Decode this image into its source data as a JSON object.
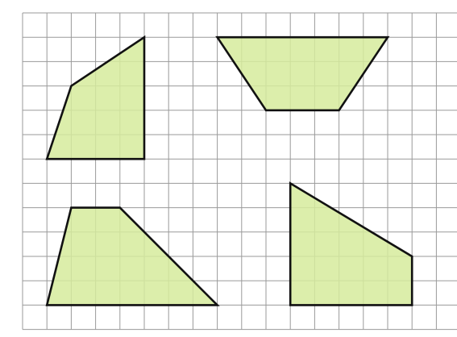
{
  "colors": {
    "background": "#ffffff",
    "grid_line": "#9a9a9a",
    "shape_fill": "#d6eb9c",
    "shape_stroke": "#111111"
  },
  "grid": {
    "columns": 18,
    "rows": 13
  },
  "shapes": [
    {
      "id": "quadrilateral-top-left",
      "vertices": [
        [
          1,
          6
        ],
        [
          5,
          6
        ],
        [
          5,
          1
        ],
        [
          2,
          3
        ]
      ]
    },
    {
      "id": "trapezoid-top-right",
      "vertices": [
        [
          8,
          1
        ],
        [
          15,
          1
        ],
        [
          13,
          4
        ],
        [
          10,
          4
        ]
      ]
    },
    {
      "id": "trapezoid-bottom-left",
      "vertices": [
        [
          1,
          12
        ],
        [
          8,
          12
        ],
        [
          4,
          8
        ],
        [
          2,
          8
        ]
      ]
    },
    {
      "id": "right-trapezoid-bottom-right",
      "vertices": [
        [
          11,
          7
        ],
        [
          16,
          10
        ],
        [
          16,
          12
        ],
        [
          11,
          12
        ]
      ]
    }
  ]
}
